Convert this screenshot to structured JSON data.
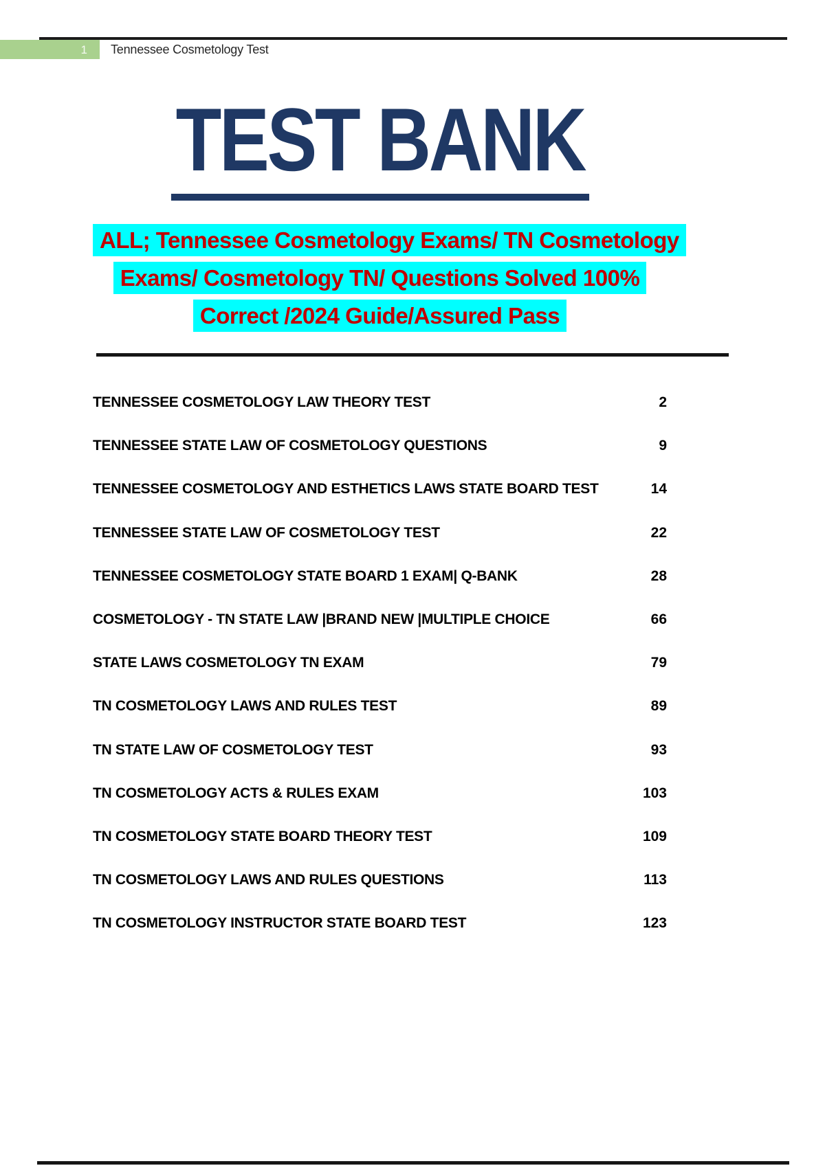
{
  "header": {
    "page_number": "1",
    "title": "Tennessee Cosmetology Test"
  },
  "heading": {
    "title": "TEST BANK",
    "subtitle_lines": [
      "ALL; Tennessee Cosmetology Exams/ TN Cosmetology",
      "Exams/ Cosmetology TN/ Questions Solved 100%",
      "Correct /2024 Guide/Assured Pass"
    ]
  },
  "toc": {
    "entries": [
      {
        "label": "TENNESSEE COSMETOLOGY LAW THEORY TEST",
        "page": "2"
      },
      {
        "label": "TENNESSEE STATE LAW OF COSMETOLOGY QUESTIONS",
        "page": "9"
      },
      {
        "label": "TENNESSEE COSMETOLOGY AND ESTHETICS LAWS STATE BOARD TEST",
        "page": "14"
      },
      {
        "label": "TENNESSEE STATE LAW OF COSMETOLOGY TEST",
        "page": "22"
      },
      {
        "label": "TENNESSEE COSMETOLOGY STATE BOARD 1 EXAM| Q-BANK",
        "page": "28"
      },
      {
        "label": "COSMETOLOGY - TN STATE LAW |BRAND NEW |MULTIPLE CHOICE",
        "page": "66"
      },
      {
        "label": "STATE LAWS COSMETOLOGY TN EXAM",
        "page": "79"
      },
      {
        "label": "TN COSMETOLOGY LAWS AND RULES TEST",
        "page": "89"
      },
      {
        "label": "TN STATE LAW OF COSMETOLOGY TEST",
        "page": "93"
      },
      {
        "label": "TN COSMETOLOGY ACTS & RULES EXAM",
        "page": "103"
      },
      {
        "label": "TN COSMETOLOGY STATE BOARD THEORY TEST",
        "page": "109"
      },
      {
        "label": "TN COSMETOLOGY LAWS AND RULES QUESTIONS",
        "page": "113"
      },
      {
        "label": "TN COSMETOLOGY INSTRUCTOR STATE BOARD TEST",
        "page": "123"
      }
    ]
  },
  "colors": {
    "title_navy": "#1f3864",
    "subtitle_highlight": "#00ffff",
    "subtitle_text": "#c00000",
    "header_bar_green": "#a9d18e",
    "rule_black": "#1b1b1b"
  }
}
